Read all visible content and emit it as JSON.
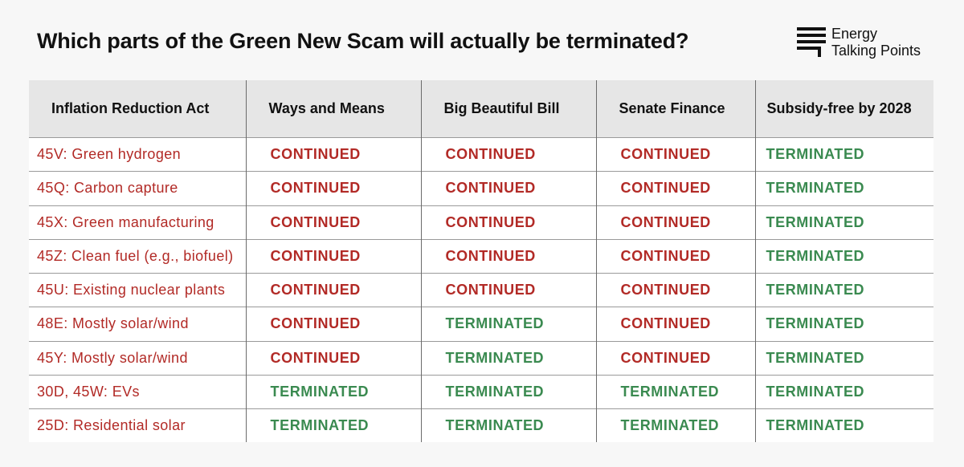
{
  "title": "Which parts of the Green New Scam will actually be terminated?",
  "brand": {
    "line1": "Energy",
    "line2": "Talking Points"
  },
  "colors": {
    "continued": "#b22a26",
    "terminated": "#3a8a50",
    "header_bg": "#e6e6e6"
  },
  "table": {
    "headers": [
      "Inflation Reduction Act",
      "Ways and Means",
      "Big Beautiful Bill",
      "Senate Finance",
      "Subsidy-free by 2028"
    ],
    "rows": [
      {
        "label": "45V: Green hydrogen",
        "cells": [
          "CONTINUED",
          "CONTINUED",
          "CONTINUED",
          "TERMINATED"
        ]
      },
      {
        "label": "45Q: Carbon capture",
        "cells": [
          "CONTINUED",
          "CONTINUED",
          "CONTINUED",
          "TERMINATED"
        ]
      },
      {
        "label": "45X: Green manufacturing",
        "cells": [
          "CONTINUED",
          "CONTINUED",
          "CONTINUED",
          "TERMINATED"
        ]
      },
      {
        "label": "45Z: Clean fuel (e.g., biofuel)",
        "cells": [
          "CONTINUED",
          "CONTINUED",
          "CONTINUED",
          "TERMINATED"
        ]
      },
      {
        "label": "45U: Existing nuclear plants",
        "cells": [
          "CONTINUED",
          "CONTINUED",
          "CONTINUED",
          "TERMINATED"
        ]
      },
      {
        "label": "48E: Mostly solar/wind",
        "cells": [
          "CONTINUED",
          "TERMINATED",
          "CONTINUED",
          "TERMINATED"
        ]
      },
      {
        "label": "45Y: Mostly solar/wind",
        "cells": [
          "CONTINUED",
          "TERMINATED",
          "CONTINUED",
          "TERMINATED"
        ]
      },
      {
        "label": "30D, 45W: EVs",
        "cells": [
          "TERMINATED",
          "TERMINATED",
          "TERMINATED",
          "TERMINATED"
        ]
      },
      {
        "label": "25D: Residential solar",
        "cells": [
          "TERMINATED",
          "TERMINATED",
          "TERMINATED",
          "TERMINATED"
        ]
      }
    ]
  }
}
